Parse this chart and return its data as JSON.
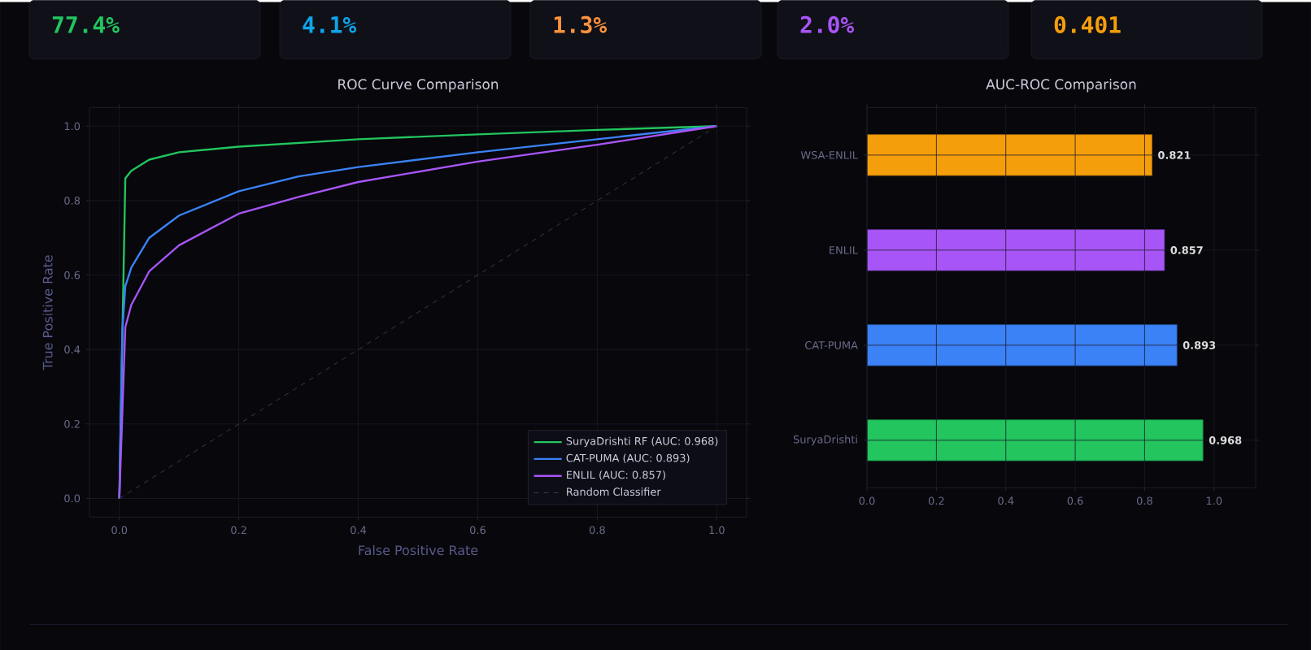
{
  "chart_data": [
    {
      "type": "other",
      "annotations": [
        "77.4%",
        "4.1%",
        "1.3%",
        "2.0%",
        "0.401"
      ],
      "colors": [
        "#22c55e",
        "#0ea5e9",
        "#fb923c",
        "#a855f7",
        "#f59e0b"
      ]
    },
    {
      "type": "line",
      "title": "ROC Curve Comparison",
      "xlabel": "False Positive Rate",
      "ylabel": "True Positive Rate",
      "xlim": [
        -0.05,
        1.05
      ],
      "ylim": [
        -0.05,
        1.05
      ],
      "xticks": [
        {
          "value": 0,
          "label": "0.0"
        },
        {
          "value": 0.2,
          "label": "0.2"
        },
        {
          "value": 0.4,
          "label": "0.4"
        },
        {
          "value": 0.6,
          "label": "0.6"
        },
        {
          "value": 0.8,
          "label": "0.8"
        },
        {
          "value": 1,
          "label": "1.0"
        }
      ],
      "yticks": [
        {
          "value": 0,
          "label": "0.0"
        },
        {
          "value": 0.2,
          "label": "0.2"
        },
        {
          "value": 0.4,
          "label": "0.4"
        },
        {
          "value": 0.6,
          "label": "0.6"
        },
        {
          "value": 0.8,
          "label": "0.8"
        },
        {
          "value": 1,
          "label": "1.0"
        }
      ],
      "grid": true,
      "legend": "bottom right",
      "marker": "none",
      "series": [
        {
          "name": "SuryaDrishti RF (AUC: 0.968)",
          "color": "#22c55e",
          "line_style": "solid",
          "x": [
            0,
            0.01,
            0.02,
            0.05,
            0.1,
            0.2,
            0.4,
            0.6,
            0.8,
            1
          ],
          "values": [
            0,
            0.86,
            0.88,
            0.91,
            0.93,
            0.945,
            0.965,
            0.978,
            0.99,
            1
          ]
        },
        {
          "name": "CAT-PUMA (AUC: 0.893)",
          "color": "#3b82f6",
          "line_style": "solid",
          "x": [
            0,
            0.005,
            0.01,
            0.02,
            0.05,
            0.1,
            0.2,
            0.3,
            0.4,
            0.6,
            0.8,
            1
          ],
          "values": [
            0,
            0.45,
            0.57,
            0.62,
            0.7,
            0.76,
            0.825,
            0.865,
            0.89,
            0.93,
            0.965,
            1
          ]
        },
        {
          "name": "ENLIL (AUC: 0.857)",
          "color": "#a855f7",
          "line_style": "solid",
          "x": [
            0,
            0.01,
            0.02,
            0.05,
            0.1,
            0.2,
            0.3,
            0.4,
            0.6,
            0.8,
            1
          ],
          "values": [
            0,
            0.46,
            0.52,
            0.61,
            0.68,
            0.765,
            0.81,
            0.85,
            0.905,
            0.95,
            1
          ]
        },
        {
          "name": "Random Classifier",
          "color": "#3a3a4a",
          "line_style": "dashed",
          "x": [
            0,
            1
          ],
          "values": [
            0,
            1
          ]
        }
      ]
    },
    {
      "type": "bar",
      "title": "AUC-ROC Comparison",
      "orientation": "horizontal",
      "categories": [
        "WSA-ENLIL",
        "ENLIL",
        "CAT-PUMA",
        "SuryaDrishti"
      ],
      "values": [
        0.821,
        0.857,
        0.893,
        0.968
      ],
      "colors": [
        "#f59e0b",
        "#a855f7",
        "#3b82f6",
        "#22c55e"
      ],
      "xlim": [
        0,
        1.12
      ],
      "xticks": [
        {
          "value": 0,
          "label": "0.0"
        },
        {
          "value": 0.2,
          "label": "0.2"
        },
        {
          "value": 0.4,
          "label": "0.4"
        },
        {
          "value": 0.6,
          "label": "0.6"
        },
        {
          "value": 0.8,
          "label": "0.8"
        },
        {
          "value": 1,
          "label": "1.0"
        }
      ],
      "grid": true,
      "data_labels": true
    }
  ]
}
